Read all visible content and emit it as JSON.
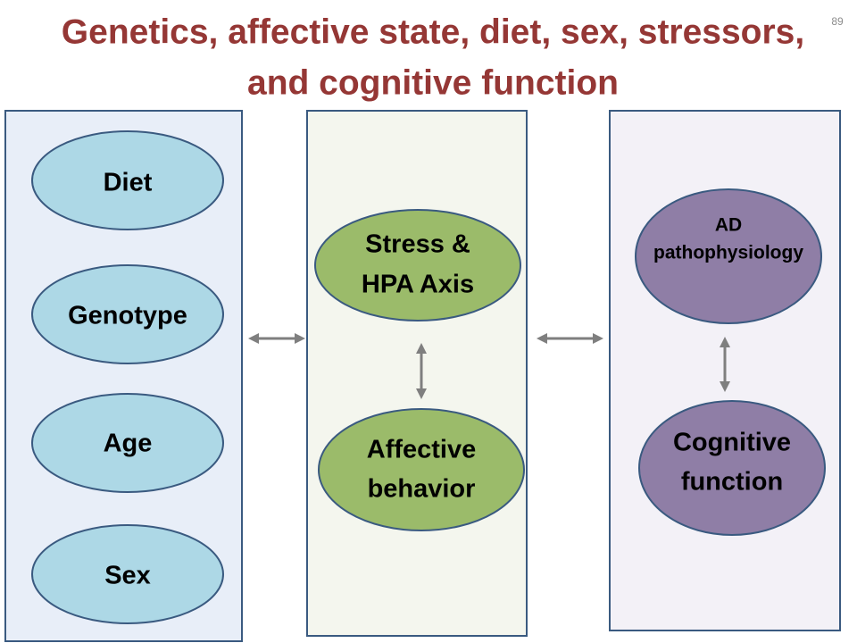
{
  "slide_number": "89",
  "title": [
    "Genetics, affective state, diet, sex, stressors,",
    "and cognitive function"
  ],
  "panels": [
    {
      "nodes": [
        {
          "lines": [
            "Diet"
          ]
        },
        {
          "lines": [
            "Genotype"
          ]
        },
        {
          "lines": [
            "Age"
          ]
        },
        {
          "lines": [
            "Sex"
          ]
        }
      ]
    },
    {
      "nodes": [
        {
          "lines": [
            "Stress &",
            "HPA Axis"
          ]
        },
        {
          "lines": [
            "Affective",
            "behavior"
          ]
        }
      ]
    },
    {
      "nodes": [
        {
          "lines": [
            "AD",
            "pathophysiology"
          ]
        },
        {
          "lines": [
            "Cognitive",
            "function"
          ]
        }
      ]
    }
  ]
}
